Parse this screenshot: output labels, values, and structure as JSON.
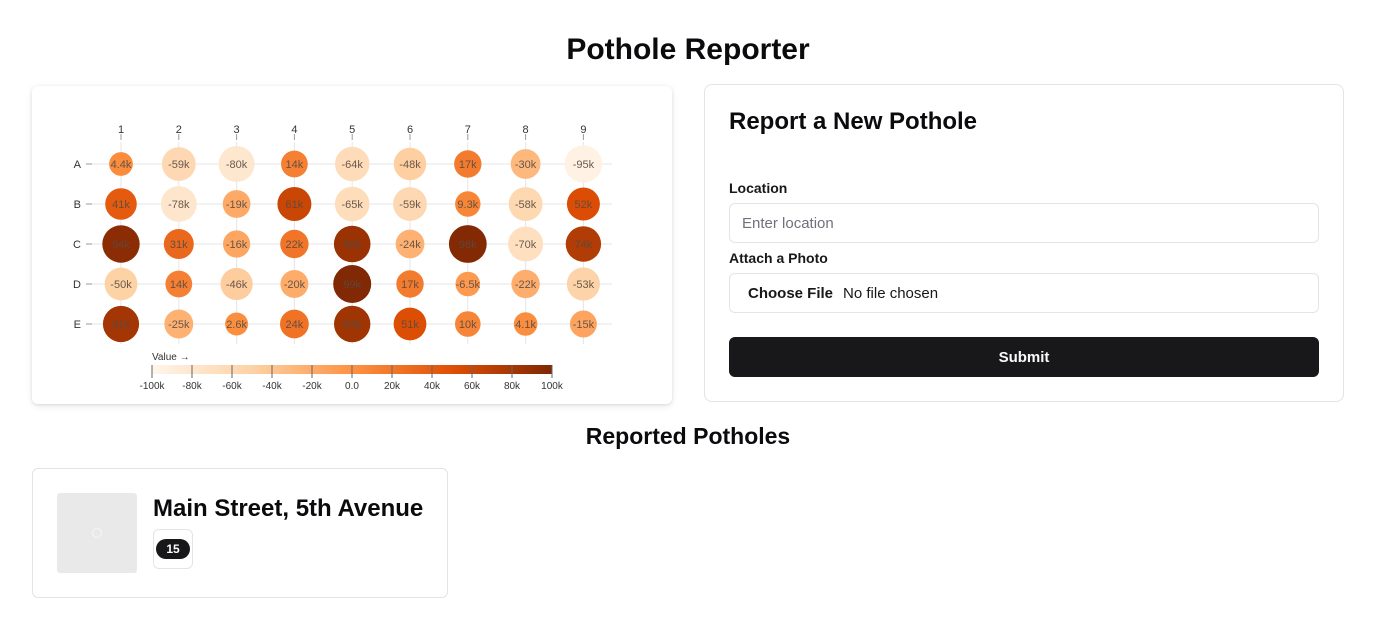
{
  "app": {
    "title": "Pothole Reporter"
  },
  "chart_data": {
    "type": "heatmap",
    "columns": [
      "1",
      "2",
      "3",
      "4",
      "5",
      "6",
      "7",
      "8",
      "9"
    ],
    "rows": [
      "A",
      "B",
      "C",
      "D",
      "E"
    ],
    "values": [
      [
        4400,
        -59000,
        -80000,
        14000,
        -64000,
        -48000,
        17000,
        -30000,
        -95000
      ],
      [
        41000,
        -78000,
        -19000,
        61000,
        -65000,
        -59000,
        9300,
        -58000,
        52000
      ],
      [
        94000,
        31000,
        -16000,
        22000,
        86000,
        -24000,
        98000,
        -70000,
        74000
      ],
      [
        -50000,
        14000,
        -46000,
        -20000,
        99000,
        17000,
        -6500,
        -22000,
        -53000
      ],
      [
        81000,
        -25000,
        2600,
        24000,
        83000,
        51000,
        10000,
        4100,
        -15000
      ]
    ],
    "labels": [
      [
        "4.4k",
        "-59k",
        "-80k",
        "14k",
        "-64k",
        "-48k",
        "17k",
        "-30k",
        "-95k"
      ],
      [
        "41k",
        "-78k",
        "-19k",
        "61k",
        "-65k",
        "-59k",
        "9.3k",
        "-58k",
        "52k"
      ],
      [
        "94k",
        "31k",
        "-16k",
        "22k",
        "86k",
        "-24k",
        "98k",
        "-70k",
        "74k"
      ],
      [
        "-50k",
        "14k",
        "-46k",
        "-20k",
        "99k",
        "17k",
        "-6.5k",
        "-22k",
        "-53k"
      ],
      [
        "81k",
        "-25k",
        "2.6k",
        "24k",
        "83k",
        "51k",
        "10k",
        "4.1k",
        "-15k"
      ]
    ],
    "legend": {
      "title": "Value →",
      "domain": [
        -100000,
        100000
      ],
      "ticks": [
        -100000,
        -80000,
        -60000,
        -40000,
        -20000,
        0,
        20000,
        40000,
        60000,
        80000,
        100000
      ],
      "tick_labels": [
        "-100k",
        "-80k",
        "-60k",
        "-40k",
        "-20k",
        "0.0",
        "20k",
        "40k",
        "60k",
        "80k",
        "100k"
      ],
      "colors": [
        "#fff5eb",
        "#fdd2a5",
        "#fd9243",
        "#df4f05",
        "#7f2704"
      ]
    }
  },
  "form": {
    "title": "Report a New Pothole",
    "location_label": "Location",
    "location_placeholder": "Enter location",
    "location_value": "",
    "photo_label": "Attach a Photo",
    "file_button": "Choose File",
    "file_status": "No file chosen",
    "submit_label": "Submit"
  },
  "reports": {
    "title": "Reported Potholes",
    "items": [
      {
        "location": "Main Street, 5th Avenue",
        "count": "15"
      }
    ]
  }
}
